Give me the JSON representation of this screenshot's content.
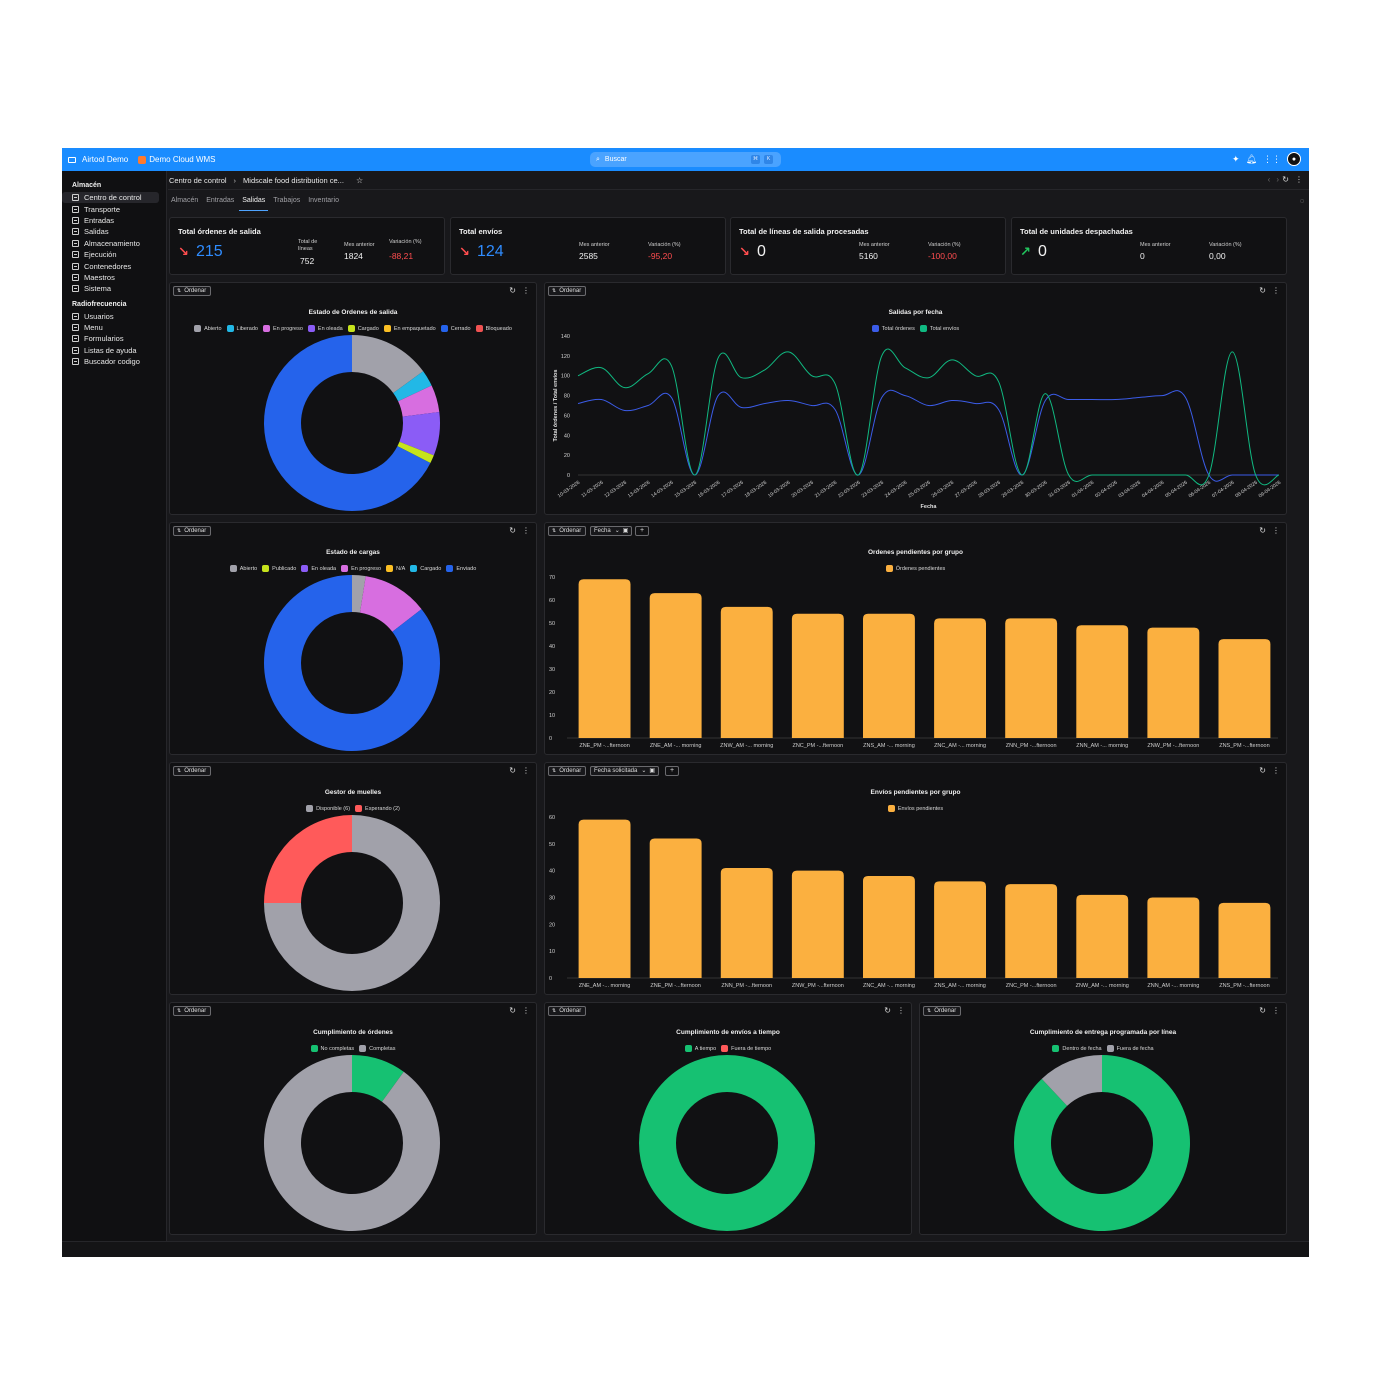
{
  "topbar": {
    "app_name": "Airtool Demo",
    "tenant": "Demo Cloud WMS",
    "search_placeholder": "Buscar",
    "kbd1": "⌘",
    "kbd2": "K"
  },
  "sidebar": {
    "section1": "Almacén",
    "items1": [
      "Centro de control",
      "Transporte",
      "Entradas",
      "Salidas",
      "Almacenamiento",
      "Ejecución",
      "Contenedores",
      "Maestros",
      "Sistema"
    ],
    "section2": "Radiofrecuencia",
    "items2": [
      "Usuarios",
      "Menu",
      "Formularios",
      "Listas de ayuda",
      "Buscador codigo"
    ]
  },
  "breadcrumb": {
    "root": "Centro de control",
    "current": "Midscale food distribution ce..."
  },
  "tabs": [
    "Almacén",
    "Entradas",
    "Salidas",
    "Trabajos",
    "Inventario"
  ],
  "kpis": [
    {
      "title": "Total órdenes de salida",
      "value": "215",
      "direction": "down",
      "labels": [
        "Total de líneas",
        "Mes anterior",
        "Variación (%)"
      ],
      "values": [
        "752",
        "1824",
        "-88,21"
      ]
    },
    {
      "title": "Total envíos",
      "value": "124",
      "direction": "down",
      "labels": [
        "Mes anterior",
        "Variación (%)"
      ],
      "values": [
        "2585",
        "-95,20"
      ]
    },
    {
      "title": "Total de líneas de salida procesadas",
      "value": "0",
      "direction": "down",
      "labels": [
        "Mes anterior",
        "Variación (%)"
      ],
      "values": [
        "5160",
        "-100,00"
      ]
    },
    {
      "title": "Total de unidades despachadas",
      "value": "0",
      "direction": "up",
      "labels": [
        "Mes anterior",
        "Variación (%)"
      ],
      "values": [
        "0",
        "0,00"
      ]
    }
  ],
  "common": {
    "sort_label": "Ordenar"
  },
  "filters": {
    "fecha": "Fecha",
    "fecha_solicitada": "Fecha solicitada"
  },
  "colors": {
    "accent": "#1a8cff",
    "red": "#ff4d4f",
    "green": "#22c55e",
    "orange": "#fbb040",
    "blue": "#2563eb",
    "teal": "#10b981"
  },
  "chart_data": [
    {
      "type": "pie",
      "title": "Estado de Ordenes de salida",
      "labels": [
        "Abierto",
        "Liberado",
        "En progreso",
        "En oleada",
        "Cargado",
        "En empaquetado",
        "Cerrado",
        "Bloqueado"
      ],
      "colors": [
        "#a1a1aa",
        "#22b8e6",
        "#d76ee0",
        "#8b5cf6",
        "#c6e31c",
        "#fbbf24",
        "#2563eb",
        "#f05252"
      ],
      "values": [
        15,
        3,
        5,
        8,
        1.5,
        0,
        67.5,
        0
      ]
    },
    {
      "type": "line",
      "title": "Salidas por fecha",
      "xlabel": "Fecha",
      "ylabel": "Total órdenes / Total envíos",
      "ylim": [
        0,
        140
      ],
      "yticks": [
        0,
        20,
        40,
        60,
        80,
        100,
        120,
        140
      ],
      "x": [
        "10-03-2026",
        "11-03-2026",
        "12-03-2026",
        "13-03-2026",
        "14-03-2026",
        "15-03-2026",
        "16-03-2026",
        "17-03-2026",
        "18-03-2026",
        "19-03-2026",
        "20-03-2026",
        "21-03-2026",
        "22-03-2026",
        "23-03-2026",
        "24-03-2026",
        "25-03-2026",
        "26-03-2026",
        "27-03-2026",
        "28-03-2026",
        "29-03-2026",
        "30-03-2026",
        "31-03-2026",
        "01-04-2026",
        "02-04-2026",
        "03-04-2026",
        "04-04-2026",
        "05-04-2026",
        "06-04-2026",
        "07-04-2026",
        "08-04-2026",
        "09-04-2026"
      ],
      "series": [
        {
          "name": "Total órdenes",
          "color": "#3b5ce8",
          "values": [
            72,
            76,
            65,
            70,
            78,
            0,
            80,
            68,
            72,
            75,
            70,
            66,
            0,
            78,
            80,
            70,
            75,
            72,
            66,
            0,
            75,
            76,
            76,
            76,
            78,
            80,
            78,
            0,
            0,
            0,
            0
          ]
        },
        {
          "name": "Total envíos",
          "color": "#10b981",
          "values": [
            100,
            108,
            88,
            102,
            110,
            0,
            118,
            98,
            106,
            124,
            100,
            92,
            0,
            120,
            108,
            98,
            116,
            100,
            94,
            0,
            82,
            0,
            0,
            0,
            0,
            0,
            0,
            0,
            124,
            0,
            0
          ]
        }
      ]
    },
    {
      "type": "pie",
      "title": "Estado de cargas",
      "labels": [
        "Abierto",
        "Publicado",
        "En oleada",
        "En progreso",
        "N/A",
        "Cargado",
        "Enviado"
      ],
      "colors": [
        "#a1a1aa",
        "#c6e31c",
        "#8b5cf6",
        "#d76ee0",
        "#fbbf24",
        "#22b8e6",
        "#2563eb"
      ],
      "values": [
        2.5,
        0,
        0,
        12,
        0,
        0,
        85.5
      ]
    },
    {
      "type": "bar",
      "title": "Ordenes pendientes por grupo",
      "series_name": "Órdenes pendientes",
      "color": "#fbb040",
      "ylim": [
        0,
        70
      ],
      "yticks": [
        0,
        10,
        20,
        30,
        40,
        50,
        60,
        70
      ],
      "categories": [
        "ZNE_PM -...fternoon",
        "ZNE_AM -... morning",
        "ZNW_AM -... morning",
        "ZNC_PM -...fternoon",
        "ZNS_AM -... morning",
        "ZNC_AM -... morning",
        "ZNN_PM -...fternoon",
        "ZNN_AM -... morning",
        "ZNW_PM -...fternoon",
        "ZNS_PM -...fternoon"
      ],
      "values": [
        69,
        63,
        57,
        54,
        54,
        52,
        52,
        49,
        48,
        43
      ]
    },
    {
      "type": "pie",
      "title": "Gestor de muelles",
      "labels": [
        "Disponible (6)",
        "Esperando (2)"
      ],
      "colors": [
        "#a1a1aa",
        "#ff5a5a"
      ],
      "values": [
        6,
        2
      ]
    },
    {
      "type": "bar",
      "title": "Envíos pendientes por grupo",
      "series_name": "Envíos pendientes",
      "color": "#fbb040",
      "ylim": [
        0,
        60
      ],
      "yticks": [
        0,
        10,
        20,
        30,
        40,
        50,
        60
      ],
      "categories": [
        "ZNE_AM -... morning",
        "ZNE_PM -...fternoon",
        "ZNN_PM -...fternoon",
        "ZNW_PM -...fternoon",
        "ZNC_AM -... morning",
        "ZNS_AM -... morning",
        "ZNC_PM -...fternoon",
        "ZNW_AM -... morning",
        "ZNN_AM -... morning",
        "ZNS_PM -...fternoon"
      ],
      "values": [
        59,
        52,
        41,
        40,
        38,
        36,
        35,
        31,
        30,
        28
      ]
    },
    {
      "type": "pie",
      "title": "Cumplimiento de órdenes",
      "labels": [
        "No completas",
        "Completas"
      ],
      "colors": [
        "#16c172",
        "#a1a1aa"
      ],
      "values": [
        10,
        90
      ]
    },
    {
      "type": "pie",
      "title": "Cumplimiento de envíos a tiempo",
      "labels": [
        "A tiempo",
        "Fuera de tiempo"
      ],
      "colors": [
        "#16c172",
        "#ff5a5a"
      ],
      "values": [
        100,
        0
      ]
    },
    {
      "type": "pie",
      "title": "Cumplimiento de entrega programada por línea",
      "labels": [
        "Dentro de fecha",
        "Fuera de fecha"
      ],
      "colors": [
        "#16c172",
        "#a1a1aa"
      ],
      "values": [
        88,
        12
      ]
    }
  ]
}
